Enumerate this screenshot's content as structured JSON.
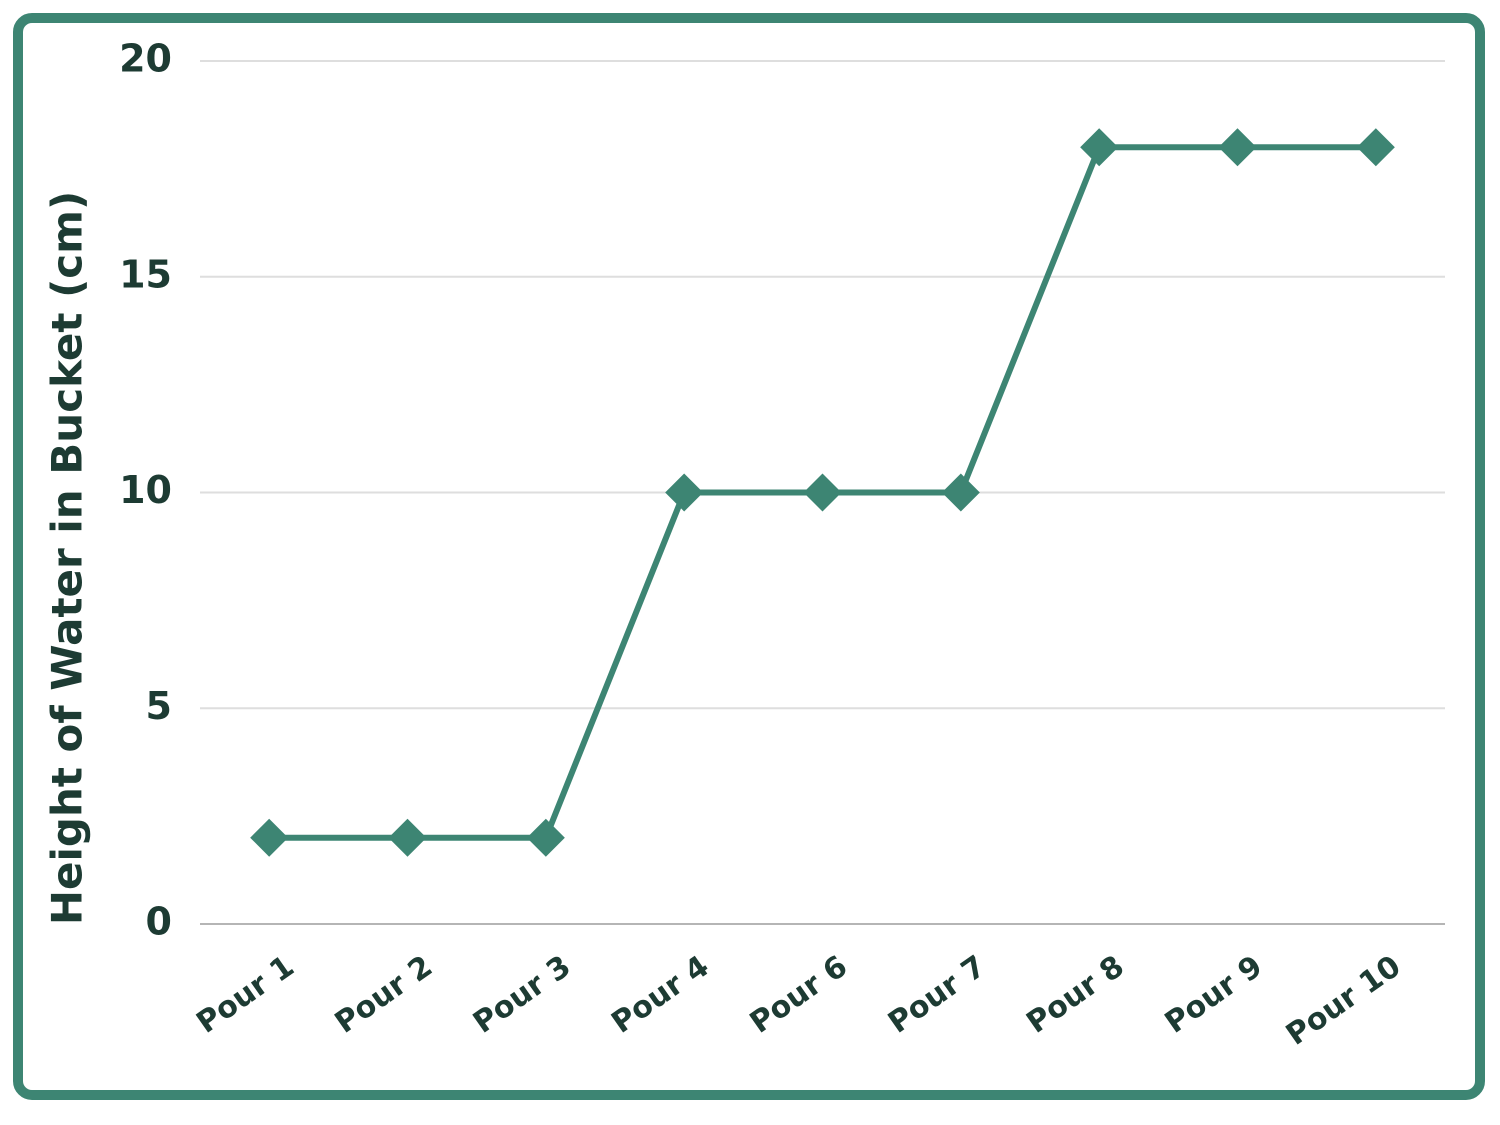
{
  "chart_data": {
    "type": "line",
    "y_label": "Height of Water in Bucket (cm)",
    "categories": [
      "Pour 1",
      "Pour 2",
      "Pour 3",
      "Pour 4",
      "Pour 6",
      "Pour 7",
      "Pour 8",
      "Pour 9",
      "Pour 10"
    ],
    "values": [
      2,
      2,
      2,
      10,
      10,
      10,
      18,
      18,
      18
    ],
    "color": "#3d8573",
    "marker": "diamond",
    "ylim": [
      0,
      20
    ],
    "yticks": [
      0,
      5,
      10,
      15,
      20
    ],
    "grid": true
  }
}
